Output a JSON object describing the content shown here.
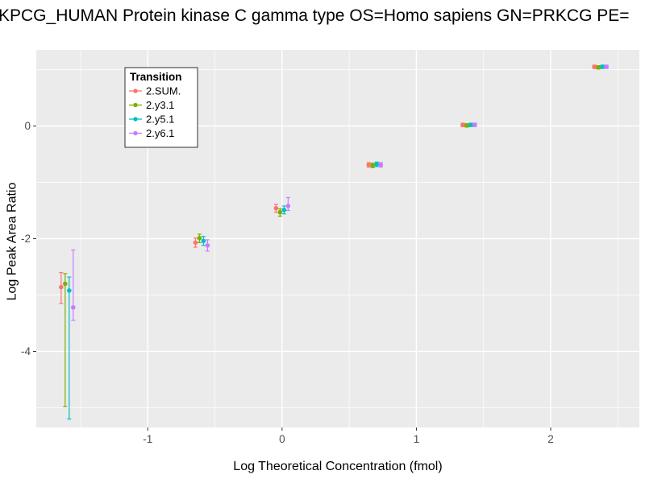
{
  "chart_data": {
    "type": "scatter",
    "title": "KPCG_HUMAN Protein kinase C gamma type OS=Homo sapiens GN=PRKCG PE=",
    "xlabel": "Log Theoretical Concentration (fmol)",
    "ylabel": "Log Peak Area Ratio",
    "xlim": [
      -1.83,
      2.66
    ],
    "ylim": [
      -5.35,
      1.35
    ],
    "xticks": [
      -1,
      0,
      1,
      2
    ],
    "yticks": [
      0,
      -2,
      -4
    ],
    "xminor": [
      -1.5,
      -0.5,
      0.5,
      1.5,
      2.5
    ],
    "yminor": [
      1,
      -1,
      -3,
      -5
    ],
    "panel_bg": "#EBEBEB",
    "grid_color": "#FFFFFF",
    "legend_title": "Transition",
    "legend_position": "top-left-inside",
    "series": [
      {
        "name": "2.SUM.",
        "color": "#F8766D",
        "points": [
          {
            "x": -1.645,
            "y": -2.86,
            "lo": -3.15,
            "hi": -2.6
          },
          {
            "x": -0.645,
            "y": -2.07,
            "lo": -2.15,
            "hi": -1.99
          },
          {
            "x": -0.045,
            "y": -1.46,
            "lo": -1.53,
            "hi": -1.39
          },
          {
            "x": 0.645,
            "y": -0.69,
            "lo": -0.73,
            "hi": -0.65
          },
          {
            "x": 1.345,
            "y": 0.02,
            "lo": -0.01,
            "hi": 0.05
          },
          {
            "x": 2.325,
            "y": 1.05,
            "lo": 1.02,
            "hi": 1.08
          }
        ]
      },
      {
        "name": "2.y3.1",
        "color": "#7CAE00",
        "points": [
          {
            "x": -1.615,
            "y": -2.8,
            "lo": -4.98,
            "hi": -2.62
          },
          {
            "x": -0.615,
            "y": -1.99,
            "lo": -2.07,
            "hi": -1.92
          },
          {
            "x": -0.015,
            "y": -1.53,
            "lo": -1.6,
            "hi": -1.47
          },
          {
            "x": 0.675,
            "y": -0.7,
            "lo": -0.74,
            "hi": -0.66
          },
          {
            "x": 1.375,
            "y": 0.01,
            "lo": -0.02,
            "hi": 0.04
          },
          {
            "x": 2.355,
            "y": 1.04,
            "lo": 1.01,
            "hi": 1.07
          }
        ]
      },
      {
        "name": "2.y5.1",
        "color": "#00BFC4",
        "points": [
          {
            "x": -1.585,
            "y": -2.92,
            "lo": -5.2,
            "hi": -2.68
          },
          {
            "x": -0.585,
            "y": -2.04,
            "lo": -2.12,
            "hi": -1.96
          },
          {
            "x": 0.015,
            "y": -1.49,
            "lo": -1.56,
            "hi": -1.42
          },
          {
            "x": 0.705,
            "y": -0.68,
            "lo": -0.72,
            "hi": -0.64
          },
          {
            "x": 1.405,
            "y": 0.02,
            "lo": -0.01,
            "hi": 0.05
          },
          {
            "x": 2.385,
            "y": 1.05,
            "lo": 1.02,
            "hi": 1.08
          }
        ]
      },
      {
        "name": "2.y6.1",
        "color": "#C77CFF",
        "points": [
          {
            "x": -1.555,
            "y": -3.22,
            "lo": -3.45,
            "hi": -2.2
          },
          {
            "x": -0.555,
            "y": -2.12,
            "lo": -2.22,
            "hi": -2.02
          },
          {
            "x": 0.045,
            "y": -1.42,
            "lo": -1.5,
            "hi": -1.27
          },
          {
            "x": 0.735,
            "y": -0.69,
            "lo": -0.73,
            "hi": -0.65
          },
          {
            "x": 1.435,
            "y": 0.02,
            "lo": -0.01,
            "hi": 0.05
          },
          {
            "x": 2.415,
            "y": 1.05,
            "lo": 1.02,
            "hi": 1.08
          }
        ]
      }
    ]
  }
}
